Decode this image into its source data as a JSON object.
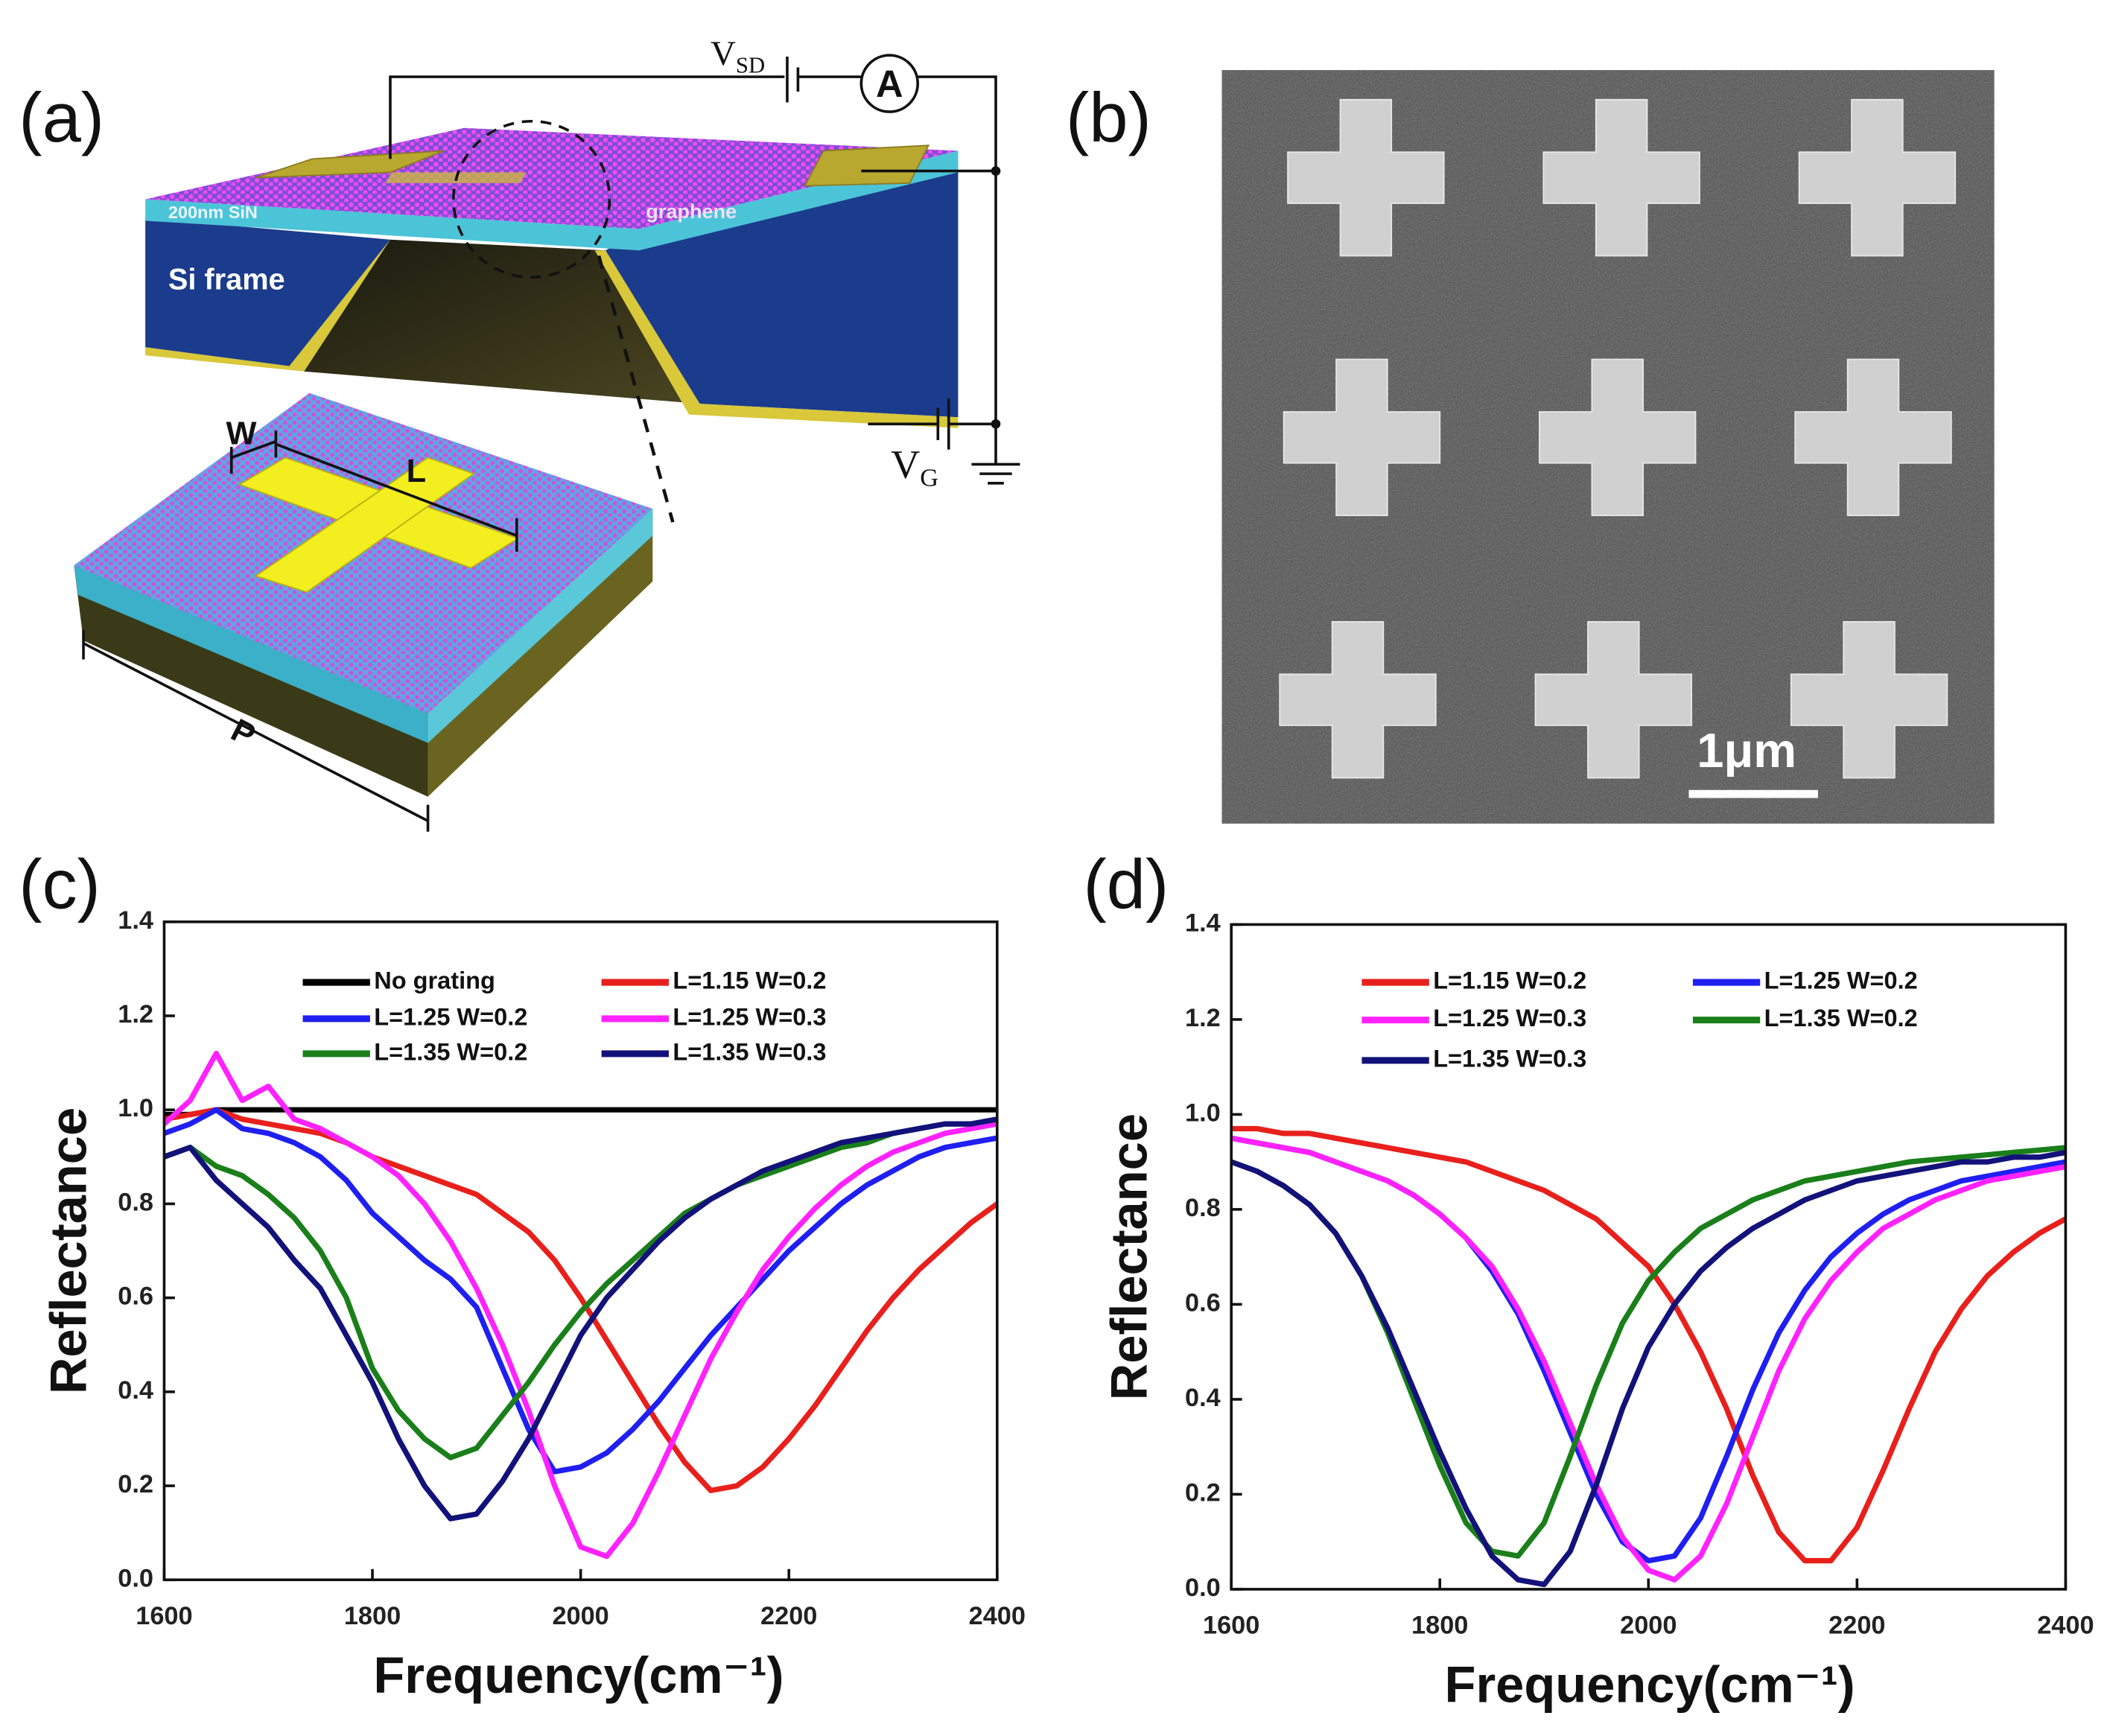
{
  "figure": {
    "panels": {
      "a": "(a)",
      "b": "(b)",
      "c": "(c)",
      "d": "(d)"
    },
    "schematic": {
      "source_drain": {
        "symbol": "V",
        "subscript": "SD"
      },
      "ammeter": "A",
      "substrate_layer": "200nm SiN",
      "layer": "graphene",
      "frame": "Si frame",
      "width": "W",
      "length": "L",
      "gate": {
        "symbol": "V",
        "subscript": "G"
      },
      "period": "P"
    },
    "sem": {
      "scale_bar": "1μm"
    }
  },
  "chart_data": [
    {
      "type": "line",
      "xlabel": "Frequency(cm⁻¹)",
      "ylabel": "Reflectance",
      "xlim": [
        1600,
        2400
      ],
      "ylim": [
        0,
        1.4
      ],
      "xticks": [
        1600,
        1800,
        2000,
        2200,
        2400
      ],
      "yticks": [
        {
          "value": 0,
          "label": "0.0"
        },
        0.2,
        0.4,
        0.6,
        0.8,
        {
          "value": 1,
          "label": "1.0"
        },
        1.2,
        1.4
      ],
      "x": [
        1600,
        1625,
        1650,
        1675,
        1700,
        1725,
        1750,
        1775,
        1800,
        1825,
        1850,
        1875,
        1900,
        1925,
        1950,
        1975,
        2000,
        2025,
        2050,
        2075,
        2100,
        2125,
        2150,
        2175,
        2200,
        2225,
        2250,
        2275,
        2300,
        2325,
        2350,
        2375,
        2400
      ],
      "series": [
        {
          "name": "No grating",
          "color": "#000000",
          "values": [
            0.99,
            0.99,
            1.0,
            1.0,
            1.0,
            1.0,
            1.0,
            1.0,
            1.0,
            1.0,
            1.0,
            1.0,
            1.0,
            1.0,
            1.0,
            1.0,
            1.0,
            1.0,
            1.0,
            1.0,
            1.0,
            1.0,
            1.0,
            1.0,
            1.0,
            1.0,
            1.0,
            1.0,
            1.0,
            1.0,
            1.0,
            1.0,
            1.0
          ]
        },
        {
          "name": "L=1.15 W=0.2",
          "color": "#e8201c",
          "values": [
            0.98,
            0.99,
            1.0,
            0.98,
            0.97,
            0.96,
            0.95,
            0.93,
            0.9,
            0.88,
            0.86,
            0.84,
            0.82,
            0.78,
            0.74,
            0.68,
            0.6,
            0.51,
            0.42,
            0.33,
            0.25,
            0.19,
            0.2,
            0.24,
            0.3,
            0.37,
            0.45,
            0.53,
            0.6,
            0.66,
            0.71,
            0.76,
            0.8
          ]
        },
        {
          "name": "L=1.25 W=0.2",
          "color": "#1f1ff0",
          "values": [
            0.95,
            0.97,
            1.0,
            0.96,
            0.95,
            0.93,
            0.9,
            0.85,
            0.78,
            0.73,
            0.68,
            0.64,
            0.58,
            0.45,
            0.32,
            0.23,
            0.24,
            0.27,
            0.32,
            0.38,
            0.45,
            0.52,
            0.58,
            0.64,
            0.7,
            0.75,
            0.8,
            0.84,
            0.87,
            0.9,
            0.92,
            0.93,
            0.94
          ]
        },
        {
          "name": "L=1.25 W=0.3",
          "color": "#ff22ff",
          "values": [
            0.97,
            1.02,
            1.12,
            1.02,
            1.05,
            0.98,
            0.96,
            0.93,
            0.9,
            0.86,
            0.8,
            0.72,
            0.62,
            0.5,
            0.36,
            0.2,
            0.07,
            0.05,
            0.12,
            0.23,
            0.35,
            0.47,
            0.57,
            0.66,
            0.73,
            0.79,
            0.84,
            0.88,
            0.91,
            0.93,
            0.95,
            0.96,
            0.97
          ]
        },
        {
          "name": "L=1.35 W=0.2",
          "color": "#1a7f1a",
          "values": [
            0.9,
            0.92,
            0.88,
            0.86,
            0.82,
            0.77,
            0.7,
            0.6,
            0.45,
            0.36,
            0.3,
            0.26,
            0.28,
            0.35,
            0.42,
            0.5,
            0.57,
            0.63,
            0.68,
            0.73,
            0.78,
            0.81,
            0.84,
            0.86,
            0.88,
            0.9,
            0.92,
            0.93,
            0.95,
            0.96,
            0.97,
            0.97,
            0.98
          ]
        },
        {
          "name": "L=1.35 W=0.3",
          "color": "#12127a",
          "values": [
            0.9,
            0.92,
            0.85,
            0.8,
            0.75,
            0.68,
            0.62,
            0.52,
            0.42,
            0.3,
            0.2,
            0.13,
            0.14,
            0.21,
            0.3,
            0.41,
            0.52,
            0.6,
            0.66,
            0.72,
            0.77,
            0.81,
            0.84,
            0.87,
            0.89,
            0.91,
            0.93,
            0.94,
            0.95,
            0.96,
            0.97,
            0.97,
            0.98
          ]
        }
      ]
    },
    {
      "type": "line",
      "xlabel": "Frequency(cm⁻¹)",
      "ylabel": "Reflectance",
      "xlim": [
        1600,
        2400
      ],
      "ylim": [
        0,
        1.4
      ],
      "xticks": [
        1600,
        1800,
        2000,
        2200,
        2400
      ],
      "yticks": [
        {
          "value": 0,
          "label": "0.0"
        },
        0.2,
        0.4,
        0.6,
        0.8,
        {
          "value": 1,
          "label": "1.0"
        },
        1.2,
        1.4
      ],
      "x": [
        1600,
        1625,
        1650,
        1675,
        1700,
        1725,
        1750,
        1775,
        1800,
        1825,
        1850,
        1875,
        1900,
        1925,
        1950,
        1975,
        2000,
        2025,
        2050,
        2075,
        2100,
        2125,
        2150,
        2175,
        2200,
        2225,
        2250,
        2275,
        2300,
        2325,
        2350,
        2375,
        2400
      ],
      "series": [
        {
          "name": "L=1.15 W=0.2",
          "color": "#e8201c",
          "values": [
            0.97,
            0.97,
            0.96,
            0.96,
            0.95,
            0.94,
            0.93,
            0.92,
            0.91,
            0.9,
            0.88,
            0.86,
            0.84,
            0.81,
            0.78,
            0.73,
            0.68,
            0.6,
            0.5,
            0.38,
            0.24,
            0.12,
            0.06,
            0.06,
            0.13,
            0.25,
            0.38,
            0.5,
            0.59,
            0.66,
            0.71,
            0.75,
            0.78
          ]
        },
        {
          "name": "L=1.25 W=0.2",
          "color": "#1f1ff0",
          "values": [
            0.95,
            0.94,
            0.93,
            0.92,
            0.9,
            0.88,
            0.86,
            0.83,
            0.79,
            0.74,
            0.67,
            0.58,
            0.46,
            0.33,
            0.2,
            0.1,
            0.06,
            0.07,
            0.15,
            0.28,
            0.42,
            0.54,
            0.63,
            0.7,
            0.75,
            0.79,
            0.82,
            0.84,
            0.86,
            0.87,
            0.88,
            0.89,
            0.9
          ]
        },
        {
          "name": "L=1.25 W=0.3",
          "color": "#ff22ff",
          "values": [
            0.95,
            0.94,
            0.93,
            0.92,
            0.9,
            0.88,
            0.86,
            0.83,
            0.79,
            0.74,
            0.68,
            0.59,
            0.48,
            0.35,
            0.22,
            0.11,
            0.04,
            0.02,
            0.07,
            0.18,
            0.32,
            0.46,
            0.57,
            0.65,
            0.71,
            0.76,
            0.79,
            0.82,
            0.84,
            0.86,
            0.87,
            0.88,
            0.89
          ]
        },
        {
          "name": "L=1.35 W=0.2",
          "color": "#1a7f1a",
          "values": [
            0.9,
            0.88,
            0.85,
            0.81,
            0.75,
            0.66,
            0.54,
            0.4,
            0.26,
            0.14,
            0.08,
            0.07,
            0.14,
            0.28,
            0.43,
            0.56,
            0.65,
            0.71,
            0.76,
            0.79,
            0.82,
            0.84,
            0.86,
            0.87,
            0.88,
            0.89,
            0.9,
            0.905,
            0.91,
            0.915,
            0.92,
            0.925,
            0.93
          ]
        },
        {
          "name": "L=1.35 W=0.3",
          "color": "#12127a",
          "values": [
            0.9,
            0.88,
            0.85,
            0.81,
            0.75,
            0.66,
            0.55,
            0.42,
            0.29,
            0.17,
            0.07,
            0.02,
            0.01,
            0.08,
            0.22,
            0.38,
            0.51,
            0.6,
            0.67,
            0.72,
            0.76,
            0.79,
            0.82,
            0.84,
            0.86,
            0.87,
            0.88,
            0.89,
            0.9,
            0.9,
            0.91,
            0.91,
            0.92
          ]
        }
      ]
    }
  ]
}
